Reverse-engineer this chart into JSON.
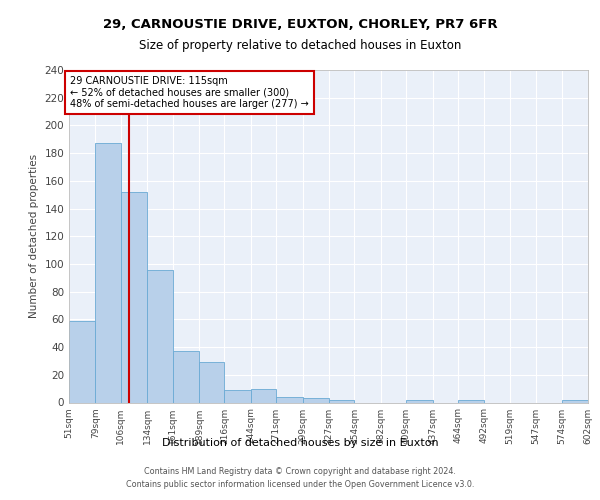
{
  "title1": "29, CARNOUSTIE DRIVE, EUXTON, CHORLEY, PR7 6FR",
  "title2": "Size of property relative to detached houses in Euxton",
  "xlabel": "Distribution of detached houses by size in Euxton",
  "ylabel": "Number of detached properties",
  "bar_edges": [
    51,
    79,
    106,
    134,
    161,
    189,
    216,
    244,
    271,
    299,
    327,
    354,
    382,
    409,
    437,
    464,
    492,
    519,
    547,
    574,
    602
  ],
  "bar_heights": [
    59,
    187,
    152,
    96,
    37,
    29,
    9,
    10,
    4,
    3,
    2,
    0,
    0,
    2,
    0,
    2,
    0,
    0,
    0,
    2
  ],
  "bar_color": "#b8d0ea",
  "bar_edge_color": "#6aaad4",
  "vline_x": 115,
  "vline_color": "#cc0000",
  "annotation_text": "29 CARNOUSTIE DRIVE: 115sqm\n← 52% of detached houses are smaller (300)\n48% of semi-detached houses are larger (277) →",
  "annotation_box_edgecolor": "#cc0000",
  "footer": "Contains HM Land Registry data © Crown copyright and database right 2024.\nContains public sector information licensed under the Open Government Licence v3.0.",
  "tick_labels": [
    "51sqm",
    "79sqm",
    "106sqm",
    "134sqm",
    "161sqm",
    "189sqm",
    "216sqm",
    "244sqm",
    "271sqm",
    "299sqm",
    "327sqm",
    "354sqm",
    "382sqm",
    "409sqm",
    "437sqm",
    "464sqm",
    "492sqm",
    "519sqm",
    "547sqm",
    "574sqm",
    "602sqm"
  ],
  "ylim": [
    0,
    240
  ],
  "yticks": [
    0,
    20,
    40,
    60,
    80,
    100,
    120,
    140,
    160,
    180,
    200,
    220,
    240
  ],
  "bg_color": "#eaf0f9"
}
